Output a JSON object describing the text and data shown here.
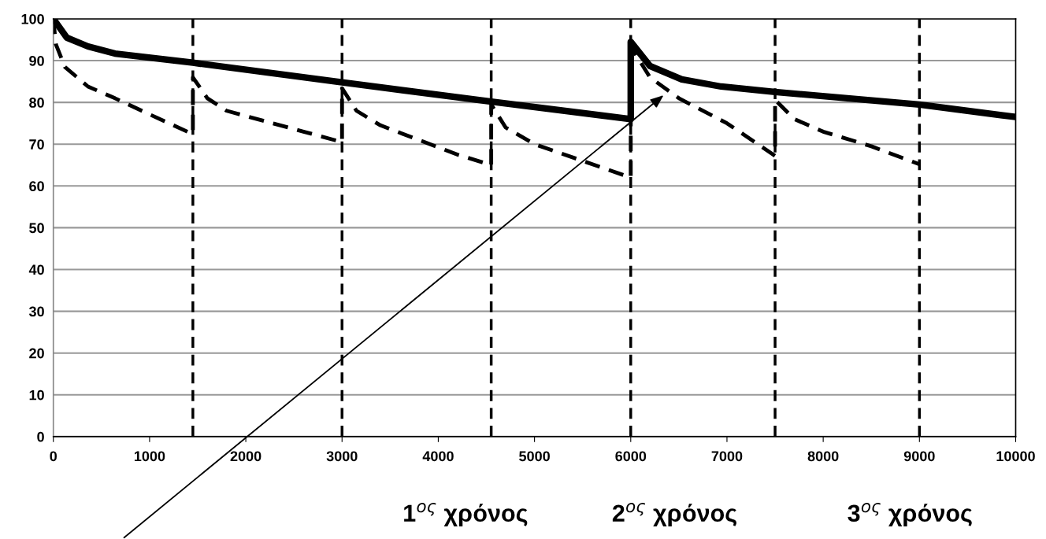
{
  "chart_data": {
    "type": "line",
    "xlim": [
      0,
      10000
    ],
    "xticks": [
      0,
      1000,
      2000,
      3000,
      4000,
      5000,
      6000,
      7000,
      8000,
      9000,
      10000
    ],
    "ylim": [
      0,
      100
    ],
    "yticks": [
      0,
      10,
      20,
      30,
      40,
      50,
      60,
      70,
      80,
      90,
      100
    ],
    "grid": "y",
    "marker": "none",
    "series": [
      {
        "color": "#000000",
        "line_style": "solid",
        "x": [
          0,
          140,
          360,
          640,
          1450,
          3000,
          4550,
          6000,
          6000,
          6200,
          6530,
          6940,
          7500,
          9000,
          10000
        ],
        "values": [
          100,
          95.5,
          93.4,
          91.7,
          89.5,
          84.8,
          80.2,
          76,
          94.5,
          88.7,
          85.5,
          83.8,
          82.5,
          79.5,
          76.5
        ]
      },
      {
        "color": "#000000",
        "line_style": "dashed",
        "x": [
          0,
          25,
          120,
          360,
          640,
          975,
          1420,
          1450,
          1450,
          1600,
          1800,
          2200,
          2600,
          3000,
          3000,
          3150,
          3400,
          3800,
          4200,
          4550,
          4550,
          4700,
          5000,
          5500,
          6000,
          6000,
          6200,
          6500,
          7000,
          7500,
          7500,
          7700,
          8000,
          8500,
          9000
        ],
        "values": [
          100,
          94,
          88.5,
          83.8,
          81,
          77.4,
          72.7,
          72.5,
          86,
          81,
          78,
          75.5,
          73,
          70.5,
          83.4,
          78,
          74.5,
          71,
          67.5,
          65,
          79.5,
          74,
          70,
          66,
          62,
          93.4,
          86,
          81,
          75,
          67.2,
          80.6,
          76,
          73,
          69.5,
          65.2
        ]
      }
    ],
    "ref_lines": [
      {
        "axis": "x",
        "value": 1450,
        "color": "#000000",
        "line_style": "dashed"
      },
      {
        "axis": "x",
        "value": 3000,
        "color": "#000000",
        "line_style": "dashed"
      },
      {
        "axis": "x",
        "value": 4550,
        "color": "#000000",
        "line_style": "dashed"
      },
      {
        "axis": "x",
        "value": 6000,
        "color": "#000000",
        "line_style": "dashed"
      },
      {
        "axis": "x",
        "value": 7500,
        "color": "#000000",
        "line_style": "dashed"
      },
      {
        "axis": "x",
        "value": 9000,
        "color": "#000000",
        "line_style": "dashed"
      }
    ],
    "annotations": [
      "1$^{ος}$ χρόνος",
      "2$^{ος}$ χρόνος",
      "3$^{ος}$ χρόνος"
    ]
  }
}
